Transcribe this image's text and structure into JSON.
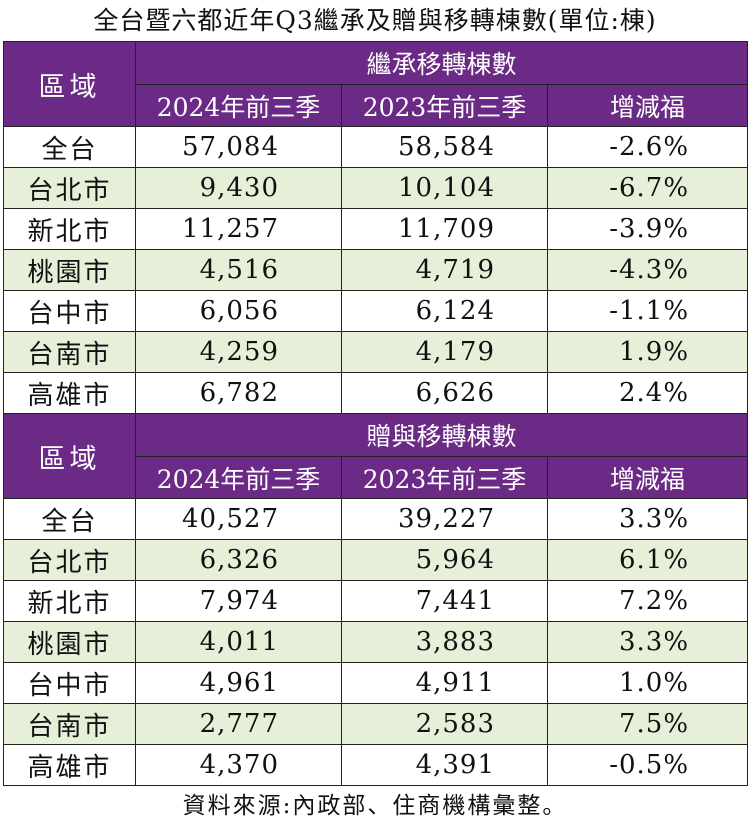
{
  "title": "全台暨六都近年Q3繼承及贈與移轉棟數(單位:棟)",
  "inheritance": {
    "region_header": "區域",
    "group_header": "繼承移轉棟數",
    "col_2024": "2024年前三季",
    "col_2023": "2023年前三季",
    "col_change": "增減福",
    "rows": [
      {
        "region": "全台",
        "y2024": "57,084",
        "y2023": "58,584",
        "change": "-2.6%"
      },
      {
        "region": "台北市",
        "y2024": "9,430",
        "y2023": "10,104",
        "change": "-6.7%"
      },
      {
        "region": "新北市",
        "y2024": "11,257",
        "y2023": "11,709",
        "change": "-3.9%"
      },
      {
        "region": "桃園市",
        "y2024": "4,516",
        "y2023": "4,719",
        "change": "-4.3%"
      },
      {
        "region": "台中市",
        "y2024": "6,056",
        "y2023": "6,124",
        "change": "-1.1%"
      },
      {
        "region": "台南市",
        "y2024": "4,259",
        "y2023": "4,179",
        "change": "1.9%"
      },
      {
        "region": "高雄市",
        "y2024": "6,782",
        "y2023": "6,626",
        "change": "2.4%"
      }
    ]
  },
  "gift": {
    "region_header": "區域",
    "group_header": "贈與移轉棟數",
    "col_2024": "2024年前三季",
    "col_2023": "2023年前三季",
    "col_change": "增減福",
    "rows": [
      {
        "region": "全台",
        "y2024": "40,527",
        "y2023": "39,227",
        "change": "3.3%"
      },
      {
        "region": "台北市",
        "y2024": "6,326",
        "y2023": "5,964",
        "change": "6.1%"
      },
      {
        "region": "新北市",
        "y2024": "7,974",
        "y2023": "7,441",
        "change": "7.2%"
      },
      {
        "region": "桃園市",
        "y2024": "4,011",
        "y2023": "3,883",
        "change": "3.3%"
      },
      {
        "region": "台中市",
        "y2024": "4,961",
        "y2023": "4,911",
        "change": "1.0%"
      },
      {
        "region": "台南市",
        "y2024": "2,777",
        "y2023": "2,583",
        "change": "7.5%"
      },
      {
        "region": "高雄市",
        "y2024": "4,370",
        "y2023": "4,391",
        "change": "-0.5%"
      }
    ]
  },
  "source": "資料來源:內政部、住商機構彙整。",
  "colors": {
    "header_bg": "#6b2a86",
    "alt_row_bg": "#e6f0d9"
  }
}
